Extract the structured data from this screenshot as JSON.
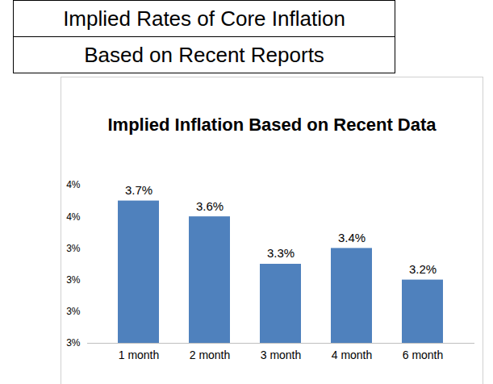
{
  "header": {
    "title": "Implied Rates of Core Inflation",
    "subtitle": "Based on Recent Reports"
  },
  "chart_data": {
    "type": "bar",
    "title": "Implied Inflation Based on Recent Data",
    "categories": [
      "1 month",
      "2 month",
      "3 month",
      "4 month",
      "6 month"
    ],
    "values": [
      3.7,
      3.6,
      3.3,
      3.4,
      3.2
    ],
    "value_labels": [
      "3.7%",
      "3.6%",
      "3.3%",
      "3.4%",
      "3.2%"
    ],
    "color": "#4f81bd",
    "ylim": [
      2.8,
      3.8
    ],
    "yticks": [
      {
        "value": 2.8,
        "label": "3%"
      },
      {
        "value": 3.0,
        "label": "3%"
      },
      {
        "value": 3.2,
        "label": "3%"
      },
      {
        "value": 3.4,
        "label": "3%"
      },
      {
        "value": 3.6,
        "label": "4%"
      },
      {
        "value": 3.8,
        "label": "4%"
      }
    ],
    "grid": false,
    "data_labels": true
  }
}
